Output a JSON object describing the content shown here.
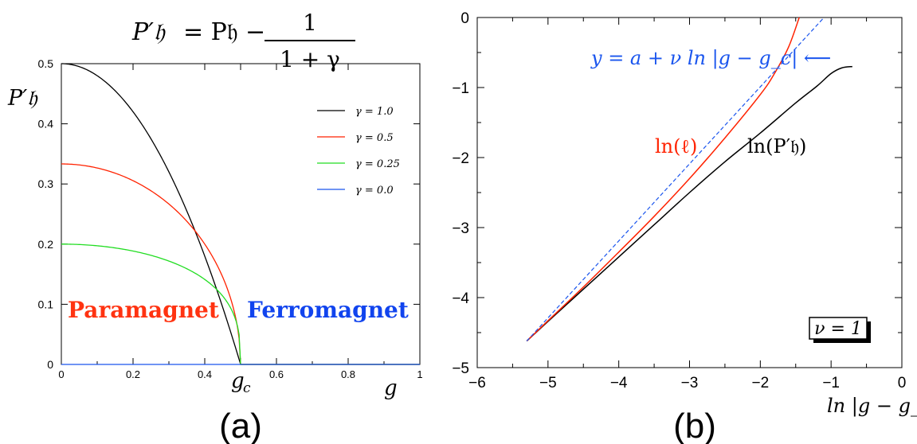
{
  "chart_data": [
    {
      "panel": "a",
      "type": "line",
      "panel_label": "(a)",
      "title_formula": {
        "lhs": "P′𝔥",
        "rhs": "= P𝔥 −",
        "num": "1",
        "den": "1 + γ"
      },
      "ylabel": "P′𝔥",
      "xlabel": "g",
      "xlim": [
        0,
        1
      ],
      "ylim": [
        0,
        0.5
      ],
      "x_ticks": [
        "0",
        "0.2",
        "0.4",
        "g_c",
        "0.6",
        "0.8",
        "1"
      ],
      "x_tick_values": [
        0,
        0.2,
        0.4,
        0.5,
        0.6,
        0.8,
        1
      ],
      "y_ticks": [
        "0",
        "0.1",
        "0.2",
        "0.3",
        "0.4",
        "0.5"
      ],
      "y_tick_values": [
        0,
        0.1,
        0.2,
        0.3,
        0.4,
        0.5
      ],
      "gc_label": "g",
      "gc_sub": "c",
      "gc": 0.5,
      "legend_position": "top-right",
      "series": [
        {
          "name": "γ = 1.0",
          "gamma": 1.0,
          "y0": 0.5,
          "color": "#000000"
        },
        {
          "name": "γ = 0.5",
          "gamma": 0.5,
          "y0": 0.3333,
          "color": "#ff2200"
        },
        {
          "name": "γ = 0.25",
          "gamma": 0.25,
          "y0": 0.2,
          "color": "#22dd22"
        },
        {
          "name": "γ = 0.0",
          "gamma": 0.0,
          "y0": 0.0,
          "color": "#1a55ee"
        }
      ],
      "annotations": [
        {
          "text": "Paramagnet",
          "color": "#ff3311"
        },
        {
          "text": "Ferromagnet",
          "color": "#1144ee"
        }
      ]
    },
    {
      "panel": "b",
      "type": "line",
      "panel_label": "(b)",
      "xlabel": "ln |g − g_c|",
      "xlim": [
        -6,
        0
      ],
      "ylim": [
        -5,
        0
      ],
      "x_ticks": [
        "−6",
        "−5",
        "−4",
        "−3",
        "−2",
        "−1",
        "0"
      ],
      "x_tick_values": [
        -6,
        -5,
        -4,
        -3,
        -2,
        -1,
        0
      ],
      "y_ticks": [
        "−5",
        "−4",
        "−3",
        "−2",
        "−1",
        "0"
      ],
      "y_tick_values": [
        -5,
        -4,
        -3,
        -2,
        -1,
        0
      ],
      "series": [
        {
          "name": "ln(P′𝔥)",
          "color": "#000000",
          "x": [
            -5.3,
            -5.0,
            -4.5,
            -4.0,
            -3.5,
            -3.0,
            -2.5,
            -2.0,
            -1.5,
            -1.2,
            -1.0,
            -0.85,
            -0.7
          ],
          "y": [
            -4.62,
            -4.34,
            -3.88,
            -3.42,
            -2.96,
            -2.5,
            -2.06,
            -1.65,
            -1.22,
            -0.98,
            -0.8,
            -0.72,
            -0.7
          ]
        },
        {
          "name": "ln(ℓ)",
          "color": "#ff2200",
          "x": [
            -5.3,
            -5.0,
            -4.5,
            -4.0,
            -3.5,
            -3.0,
            -2.5,
            -2.0,
            -1.8,
            -1.6,
            -1.45
          ],
          "y": [
            -4.62,
            -4.33,
            -3.85,
            -3.35,
            -2.84,
            -2.3,
            -1.72,
            -1.1,
            -0.8,
            -0.42,
            0.0
          ]
        },
        {
          "name": "fit",
          "color": "#1a55ee",
          "dashed": true,
          "x": [
            -5.3,
            -1.1
          ],
          "y": [
            -4.62,
            0.0
          ]
        }
      ],
      "annotations": [
        {
          "id": "fit",
          "text": "y = a + ν ln |g − g_c| ⟵",
          "color": "#1a55ee"
        },
        {
          "id": "ell",
          "text": "ln(ℓ)",
          "color": "#ff2200"
        },
        {
          "id": "P",
          "text": "ln(P′𝔥)",
          "color": "#000000"
        },
        {
          "id": "nu",
          "text": "ν = 1",
          "color": "#000000"
        }
      ]
    }
  ]
}
